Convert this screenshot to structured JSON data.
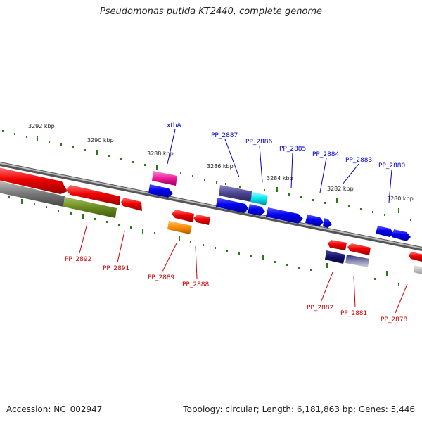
{
  "title": "Pseudomonas putida KT2440, complete genome",
  "accession": "Accession: NC_002947",
  "summary": "Topology: circular; Length: 6,181,863 bp; Genes: 5,446",
  "colors": {
    "forward_label": "#0000cc",
    "reverse_label": "#cc0000",
    "tick": "#2a7a1a",
    "backbone": "#888888"
  },
  "ticks": [
    {
      "label": "3292 kbp"
    },
    {
      "label": "3290 kbp"
    },
    {
      "label": "3288 kbp"
    },
    {
      "label": "3286 kbp"
    },
    {
      "label": "3284 kbp"
    },
    {
      "label": "3282 kbp"
    },
    {
      "label": "3280 kbp"
    }
  ],
  "forward_labels": [
    "xthA",
    "PP_2887",
    "PP_2886",
    "PP_2885",
    "PP_2884",
    "PP_2883",
    "PP_2880"
  ],
  "reverse_labels": [
    "PP_2892",
    "PP_2891",
    "PP_2889",
    "PP_2888",
    "PP_2882",
    "PP_2881",
    "PP_2878"
  ]
}
